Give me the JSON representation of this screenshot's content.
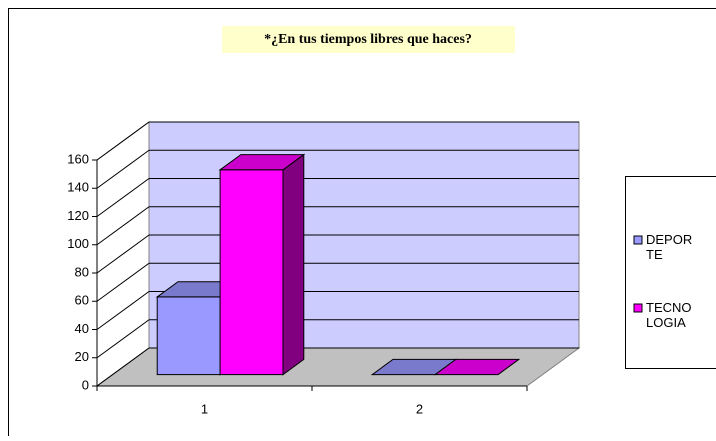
{
  "chart_data": {
    "type": "bar3d",
    "title": "*¿En tus tiempos libres que haces?",
    "categories": [
      "1",
      "2"
    ],
    "series": [
      {
        "name": "DEPORTE",
        "color": "#9999ff",
        "values": [
          55,
          0
        ]
      },
      {
        "name": "TECNOLOGIA",
        "color": "#ff00ff",
        "values": [
          145,
          0
        ]
      }
    ],
    "ylim": [
      0,
      160
    ],
    "yticks": [
      0,
      20,
      40,
      60,
      80,
      100,
      120,
      140,
      160
    ],
    "grid": true,
    "legend": "right"
  }
}
